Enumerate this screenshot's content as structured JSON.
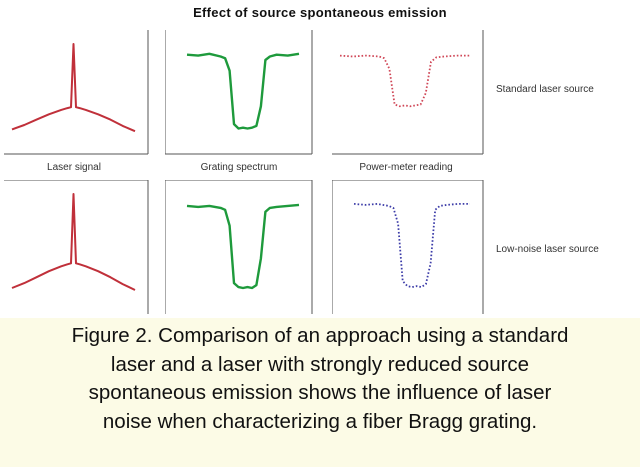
{
  "figure": {
    "title": "Effect of source spontaneous emission",
    "column_labels": [
      "Laser signal",
      "Grating spectrum",
      "Power-meter reading"
    ],
    "row_labels": [
      "Standard laser source",
      "Low-noise laser source"
    ],
    "colors": {
      "laser": "#c0303a",
      "grating": "#1e9a3c",
      "meter_standard": "#d04858",
      "meter_lownoise": "#3c3ca8"
    }
  },
  "chart_data": [
    {
      "type": "line",
      "panel": "Laser signal",
      "row": "Standard laser source",
      "x": [
        0,
        0.1,
        0.2,
        0.3,
        0.4,
        0.45,
        0.48,
        0.5,
        0.52,
        0.55,
        0.6,
        0.7,
        0.8,
        0.9,
        1.0
      ],
      "y": [
        0.04,
        0.09,
        0.15,
        0.21,
        0.26,
        0.28,
        0.29,
        1.0,
        0.29,
        0.28,
        0.26,
        0.21,
        0.15,
        0.08,
        0.02
      ]
    },
    {
      "type": "line",
      "panel": "Grating spectrum",
      "row": "Standard laser source",
      "x": [
        0,
        0.1,
        0.2,
        0.3,
        0.34,
        0.38,
        0.42,
        0.46,
        0.5,
        0.54,
        0.58,
        0.62,
        0.66,
        0.7,
        0.74,
        0.8,
        0.9,
        1.0
      ],
      "y": [
        0.88,
        0.87,
        0.89,
        0.86,
        0.84,
        0.7,
        0.1,
        0.05,
        0.06,
        0.05,
        0.06,
        0.08,
        0.3,
        0.82,
        0.86,
        0.88,
        0.87,
        0.89
      ]
    },
    {
      "type": "line",
      "panel": "Power-meter reading",
      "row": "Standard laser source",
      "x": [
        0,
        0.1,
        0.2,
        0.3,
        0.34,
        0.38,
        0.42,
        0.46,
        0.5,
        0.54,
        0.58,
        0.62,
        0.66,
        0.7,
        0.74,
        0.8,
        0.9,
        1.0
      ],
      "y": [
        0.87,
        0.86,
        0.87,
        0.86,
        0.84,
        0.72,
        0.32,
        0.3,
        0.31,
        0.3,
        0.31,
        0.32,
        0.45,
        0.8,
        0.85,
        0.86,
        0.87,
        0.87
      ]
    },
    {
      "type": "line",
      "panel": "Laser signal",
      "row": "Low-noise laser source",
      "x": [
        0,
        0.1,
        0.2,
        0.3,
        0.4,
        0.45,
        0.48,
        0.5,
        0.52,
        0.55,
        0.6,
        0.7,
        0.8,
        0.9,
        1.0
      ],
      "y": [
        0.05,
        0.1,
        0.16,
        0.22,
        0.27,
        0.29,
        0.3,
        1.0,
        0.3,
        0.29,
        0.27,
        0.22,
        0.16,
        0.09,
        0.03
      ]
    },
    {
      "type": "line",
      "panel": "Grating spectrum",
      "row": "Low-noise laser source",
      "x": [
        0,
        0.1,
        0.2,
        0.3,
        0.34,
        0.38,
        0.42,
        0.46,
        0.5,
        0.54,
        0.58,
        0.62,
        0.66,
        0.7,
        0.74,
        0.8,
        0.9,
        1.0
      ],
      "y": [
        0.88,
        0.87,
        0.88,
        0.86,
        0.84,
        0.68,
        0.1,
        0.06,
        0.05,
        0.06,
        0.05,
        0.08,
        0.35,
        0.82,
        0.86,
        0.87,
        0.88,
        0.89
      ]
    },
    {
      "type": "line",
      "panel": "Power-meter reading",
      "row": "Low-noise laser source",
      "x": [
        0,
        0.1,
        0.2,
        0.3,
        0.34,
        0.38,
        0.42,
        0.46,
        0.5,
        0.54,
        0.58,
        0.62,
        0.66,
        0.7,
        0.74,
        0.8,
        0.9,
        1.0
      ],
      "y": [
        0.9,
        0.89,
        0.9,
        0.88,
        0.86,
        0.7,
        0.12,
        0.07,
        0.06,
        0.07,
        0.06,
        0.09,
        0.3,
        0.84,
        0.88,
        0.89,
        0.9,
        0.9
      ]
    }
  ],
  "caption": {
    "lines": [
      "Figure 2. Comparison of an approach using a standard",
      "laser and a laser with strongly reduced source",
      "spontaneous emission shows the influence of laser",
      "noise when characterizing a fiber Bragg grating."
    ]
  }
}
